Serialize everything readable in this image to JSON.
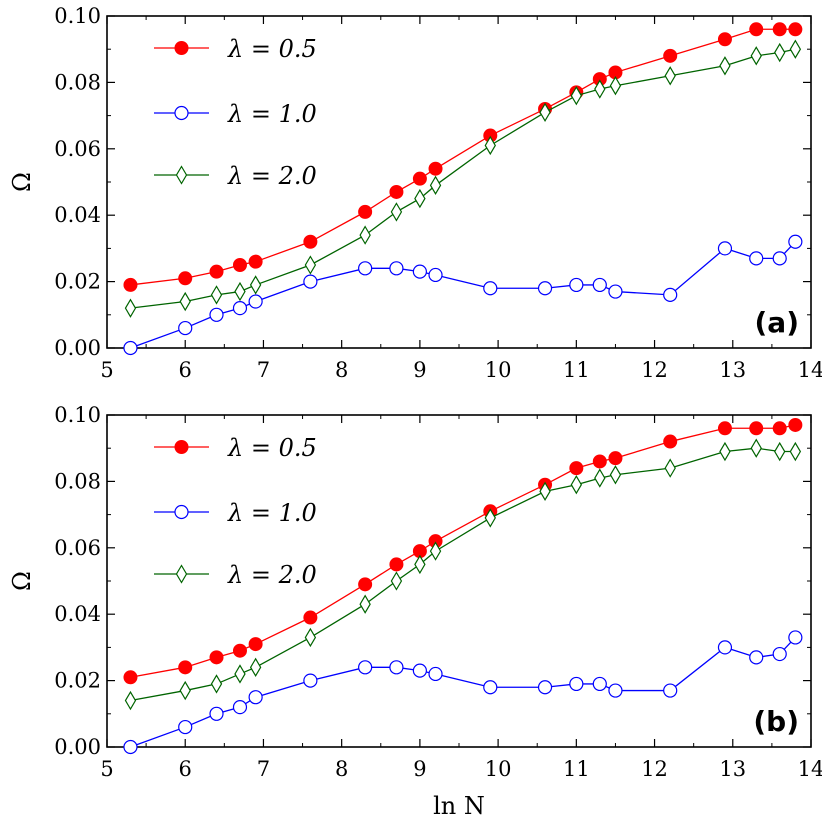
{
  "figure": {
    "shared_xlabel": "ln N",
    "ylabel": "Ω"
  },
  "chart_data": [
    {
      "type": "line",
      "panel": "(a)",
      "xlabel": "",
      "ylabel": "Ω",
      "xlim": [
        5,
        14
      ],
      "ylim": [
        0,
        0.1
      ],
      "xticks": [
        5,
        6,
        7,
        8,
        9,
        10,
        11,
        12,
        13,
        14
      ],
      "yticks": [
        0.0,
        0.02,
        0.04,
        0.06,
        0.08,
        0.1
      ],
      "xtick_labels": [
        "5",
        "6",
        "7",
        "8",
        "9",
        "10",
        "11",
        "12",
        "13",
        "14"
      ],
      "ytick_labels": [
        "0.00",
        "0.02",
        "0.04",
        "0.06",
        "0.08",
        "0.10"
      ],
      "grid": false,
      "legend_position": "top-left",
      "x": [
        5.3,
        6.0,
        6.4,
        6.7,
        6.9,
        7.6,
        8.3,
        8.7,
        9.0,
        9.2,
        9.9,
        10.6,
        11.0,
        11.3,
        11.5,
        12.2,
        12.9,
        13.3,
        13.6,
        13.8
      ],
      "series": [
        {
          "name": "λ = 0.5",
          "color": "#ff0000",
          "marker": "filled-circle",
          "values": [
            0.019,
            0.021,
            0.023,
            0.025,
            0.026,
            0.032,
            0.041,
            0.047,
            0.051,
            0.054,
            0.064,
            0.072,
            0.077,
            0.081,
            0.083,
            0.088,
            0.093,
            0.096,
            0.096,
            0.096
          ]
        },
        {
          "name": "λ = 1.0",
          "color": "#0000ff",
          "marker": "open-circle",
          "values": [
            0.0,
            0.006,
            0.01,
            0.012,
            0.014,
            0.02,
            0.024,
            0.024,
            0.023,
            0.022,
            0.018,
            0.018,
            0.019,
            0.019,
            0.017,
            0.016,
            0.03,
            0.027,
            0.027,
            0.032
          ]
        },
        {
          "name": "λ = 2.0",
          "color": "#006400",
          "marker": "open-diamond",
          "values": [
            0.012,
            0.014,
            0.016,
            0.017,
            0.019,
            0.025,
            0.034,
            0.041,
            0.045,
            0.049,
            0.061,
            0.071,
            0.076,
            0.078,
            0.079,
            0.082,
            0.085,
            0.088,
            0.089,
            0.09
          ]
        }
      ]
    },
    {
      "type": "line",
      "panel": "(b)",
      "xlabel": "ln N",
      "ylabel": "Ω",
      "xlim": [
        5,
        14
      ],
      "ylim": [
        0,
        0.1
      ],
      "xticks": [
        5,
        6,
        7,
        8,
        9,
        10,
        11,
        12,
        13,
        14
      ],
      "yticks": [
        0.0,
        0.02,
        0.04,
        0.06,
        0.08,
        0.1
      ],
      "xtick_labels": [
        "5",
        "6",
        "7",
        "8",
        "9",
        "10",
        "11",
        "12",
        "13",
        "14"
      ],
      "ytick_labels": [
        "0.00",
        "0.02",
        "0.04",
        "0.06",
        "0.08",
        "0.10"
      ],
      "grid": false,
      "legend_position": "top-left",
      "x": [
        5.3,
        6.0,
        6.4,
        6.7,
        6.9,
        7.6,
        8.3,
        8.7,
        9.0,
        9.2,
        9.9,
        10.6,
        11.0,
        11.3,
        11.5,
        12.2,
        12.9,
        13.3,
        13.6,
        13.8
      ],
      "series": [
        {
          "name": "λ = 0.5",
          "color": "#ff0000",
          "marker": "filled-circle",
          "values": [
            0.021,
            0.024,
            0.027,
            0.029,
            0.031,
            0.039,
            0.049,
            0.055,
            0.059,
            0.062,
            0.071,
            0.079,
            0.084,
            0.086,
            0.087,
            0.092,
            0.096,
            0.096,
            0.096,
            0.097
          ]
        },
        {
          "name": "λ = 1.0",
          "color": "#0000ff",
          "marker": "open-circle",
          "values": [
            0.0,
            0.006,
            0.01,
            0.012,
            0.015,
            0.02,
            0.024,
            0.024,
            0.023,
            0.022,
            0.018,
            0.018,
            0.019,
            0.019,
            0.017,
            0.017,
            0.03,
            0.027,
            0.028,
            0.033
          ]
        },
        {
          "name": "λ = 2.0",
          "color": "#006400",
          "marker": "open-diamond",
          "values": [
            0.014,
            0.017,
            0.019,
            0.022,
            0.024,
            0.033,
            0.043,
            0.05,
            0.055,
            0.059,
            0.069,
            0.077,
            0.079,
            0.081,
            0.082,
            0.084,
            0.089,
            0.09,
            0.089,
            0.089
          ]
        }
      ]
    }
  ]
}
